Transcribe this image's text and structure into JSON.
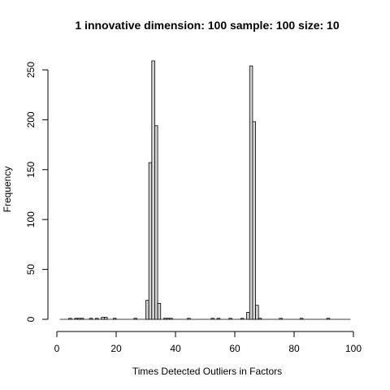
{
  "chart_data": {
    "type": "bar",
    "title": "1 innovative dimension: 100 sample: 100 size: 10",
    "xlabel": "Times Detected Outliers in Factors",
    "ylabel": "Frequency",
    "xlim": [
      0,
      100
    ],
    "ylim": [
      0,
      260
    ],
    "x_ticks": [
      0,
      20,
      40,
      60,
      80,
      100
    ],
    "y_ticks": [
      0,
      50,
      100,
      150,
      200,
      250
    ],
    "bin_width": 1,
    "bins": [
      {
        "x": 4,
        "count": 1
      },
      {
        "x": 6,
        "count": 1
      },
      {
        "x": 7,
        "count": 1
      },
      {
        "x": 8,
        "count": 1
      },
      {
        "x": 11,
        "count": 1
      },
      {
        "x": 13,
        "count": 1
      },
      {
        "x": 15,
        "count": 2
      },
      {
        "x": 16,
        "count": 2
      },
      {
        "x": 19,
        "count": 1
      },
      {
        "x": 26,
        "count": 1
      },
      {
        "x": 30,
        "count": 19
      },
      {
        "x": 31,
        "count": 157
      },
      {
        "x": 32,
        "count": 259
      },
      {
        "x": 33,
        "count": 194
      },
      {
        "x": 34,
        "count": 16
      },
      {
        "x": 36,
        "count": 1
      },
      {
        "x": 37,
        "count": 1
      },
      {
        "x": 38,
        "count": 1
      },
      {
        "x": 44,
        "count": 1
      },
      {
        "x": 52,
        "count": 1
      },
      {
        "x": 54,
        "count": 1
      },
      {
        "x": 58,
        "count": 1
      },
      {
        "x": 62,
        "count": 1
      },
      {
        "x": 64,
        "count": 7
      },
      {
        "x": 65,
        "count": 254
      },
      {
        "x": 66,
        "count": 198
      },
      {
        "x": 67,
        "count": 14
      },
      {
        "x": 68,
        "count": 1
      },
      {
        "x": 75,
        "count": 1
      },
      {
        "x": 82,
        "count": 1
      },
      {
        "x": 91,
        "count": 1
      }
    ],
    "baseline_range": [
      1,
      99
    ],
    "grid": false,
    "legend": "none"
  }
}
